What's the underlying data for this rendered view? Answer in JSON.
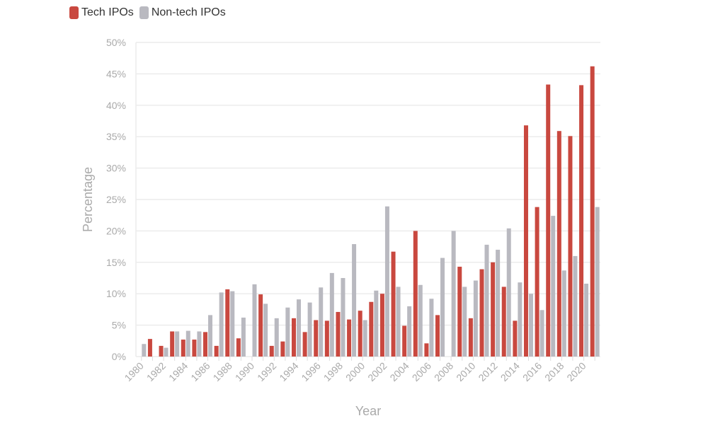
{
  "chart_data": {
    "type": "bar",
    "xlabel": "Year",
    "ylabel": "Percentage",
    "ylim": [
      0,
      50
    ],
    "yticks": [
      "0%",
      "5%",
      "10%",
      "15%",
      "20%",
      "25%",
      "30%",
      "35%",
      "40%",
      "45%",
      "50%"
    ],
    "grid": true,
    "legend_position": "top-left",
    "categories": [
      1980,
      1981,
      1982,
      1983,
      1984,
      1985,
      1986,
      1987,
      1988,
      1989,
      1990,
      1991,
      1992,
      1993,
      1994,
      1995,
      1996,
      1997,
      1998,
      1999,
      2000,
      2001,
      2002,
      2003,
      2004,
      2005,
      2006,
      2007,
      2008,
      2009,
      2010,
      2011,
      2012,
      2013,
      2014,
      2015,
      2016,
      2017,
      2018,
      2019,
      2020,
      2021
    ],
    "xtick_labels": [
      "1980",
      "1982",
      "1984",
      "1986",
      "1988",
      "1990",
      "1992",
      "1994",
      "1996",
      "1998",
      "2000",
      "2002",
      "2004",
      "2006",
      "2008",
      "2010",
      "2012",
      "2014",
      "2016",
      "2018",
      "2020"
    ],
    "series": [
      {
        "name": "Tech IPOs",
        "color": "#c9483f",
        "values": [
          0,
          2.8,
          1.7,
          4.0,
          2.7,
          2.7,
          3.9,
          1.7,
          10.7,
          2.9,
          0,
          9.9,
          1.7,
          2.4,
          6.1,
          3.9,
          5.8,
          5.7,
          7.1,
          5.9,
          7.3,
          8.7,
          10.0,
          16.7,
          4.9,
          20.0,
          2.1,
          6.6,
          0,
          14.3,
          6.1,
          13.9,
          15.0,
          11.1,
          5.7,
          36.8,
          23.8,
          43.3,
          35.9,
          35.1,
          43.2,
          46.2
        ]
      },
      {
        "name": "Non-tech IPOs",
        "color": "#b9b9c0",
        "values": [
          2.0,
          0,
          1.4,
          4.0,
          4.1,
          4.0,
          6.6,
          10.2,
          10.4,
          6.2,
          11.5,
          8.4,
          6.1,
          7.8,
          9.1,
          8.6,
          11.0,
          13.3,
          12.5,
          17.9,
          5.8,
          10.5,
          23.9,
          11.1,
          8.0,
          11.4,
          9.2,
          15.7,
          20.0,
          11.1,
          12.1,
          17.8,
          17.0,
          20.4,
          11.8,
          10.0,
          7.4,
          22.4,
          13.7,
          16.0,
          11.6,
          23.8
        ]
      }
    ]
  }
}
